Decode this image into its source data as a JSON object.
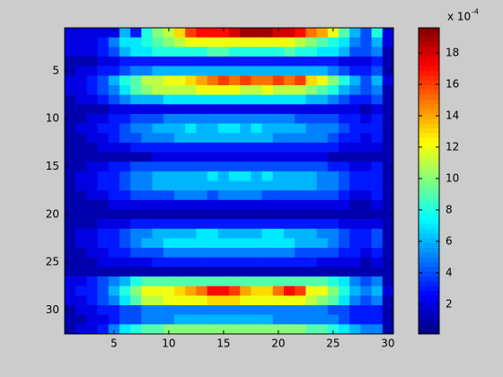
{
  "chart_data": {
    "type": "heatmap",
    "xlim": [
      0.5,
      30.5
    ],
    "ylim": [
      0.5,
      32.5
    ],
    "xticks": [
      5,
      10,
      15,
      20,
      25,
      30
    ],
    "yticks": [
      5,
      10,
      15,
      20,
      25,
      30
    ],
    "clim": [
      0.1,
      19.6
    ],
    "cticks": [
      2,
      4,
      6,
      8,
      10,
      12,
      14,
      16,
      18
    ],
    "colormap": "jet",
    "colorbar_label": "x 10",
    "colorbar_exponent": "-4",
    "values": [
      [
        2,
        2,
        2,
        2,
        2,
        6,
        3,
        8,
        10,
        11,
        13,
        16,
        17,
        17,
        17,
        18,
        19,
        19,
        19,
        18,
        18,
        17,
        15,
        14,
        12,
        9,
        6,
        4,
        8,
        2
      ],
      [
        2,
        2,
        2,
        3,
        5,
        7,
        7,
        8,
        9,
        10,
        11,
        12,
        12,
        12,
        12,
        12,
        12,
        12,
        12,
        12,
        12,
        11,
        10,
        9,
        8,
        7,
        5,
        4,
        6,
        2
      ],
      [
        2,
        2,
        2,
        3,
        4,
        6,
        7,
        7,
        8,
        8,
        8,
        8,
        8,
        9,
        9,
        8,
        8,
        8,
        8,
        8,
        9,
        8,
        8,
        7,
        7,
        6,
        4,
        4,
        5,
        1
      ],
      [
        1,
        1,
        1,
        2,
        2,
        3,
        3,
        3,
        3,
        3,
        3,
        3,
        3,
        3,
        3,
        3,
        3,
        3,
        3,
        3,
        3,
        3,
        3,
        3,
        3,
        2,
        2,
        2,
        3,
        1
      ],
      [
        1,
        2,
        2,
        3,
        3,
        4,
        5,
        5,
        6,
        6,
        6,
        6,
        6,
        6,
        6,
        6,
        6,
        6,
        6,
        6,
        6,
        6,
        6,
        6,
        5,
        4,
        3,
        3,
        4,
        1
      ],
      [
        2,
        2,
        3,
        4,
        6,
        8,
        9,
        11,
        11,
        12,
        12,
        13,
        14,
        15,
        16,
        15,
        16,
        15,
        15,
        16,
        15,
        16,
        13,
        12,
        10,
        8,
        6,
        4,
        6,
        2
      ],
      [
        2,
        2,
        3,
        4,
        5,
        7,
        9,
        10,
        11,
        11,
        11,
        11,
        12,
        12,
        12,
        12,
        11,
        11,
        12,
        11,
        11,
        11,
        10,
        9,
        8,
        6,
        5,
        4,
        5,
        1
      ],
      [
        1,
        2,
        2,
        3,
        4,
        5,
        6,
        6,
        6,
        7,
        7,
        7,
        7,
        7,
        7,
        7,
        7,
        7,
        7,
        7,
        7,
        7,
        6,
        6,
        5,
        4,
        3,
        3,
        4,
        1
      ],
      [
        1,
        1,
        1,
        1,
        2,
        2,
        2,
        2,
        2,
        2,
        2,
        2,
        2,
        2,
        2,
        2,
        2,
        2,
        2,
        2,
        2,
        2,
        2,
        2,
        2,
        2,
        2,
        1,
        2,
        1
      ],
      [
        1,
        1,
        2,
        2,
        3,
        3,
        4,
        4,
        4,
        5,
        5,
        5,
        5,
        5,
        5,
        5,
        5,
        5,
        5,
        5,
        5,
        4,
        4,
        4,
        4,
        3,
        3,
        2,
        3,
        1
      ],
      [
        1,
        2,
        2,
        3,
        3,
        4,
        5,
        5,
        6,
        6,
        6,
        7,
        6,
        6,
        7,
        7,
        6,
        7,
        6,
        6,
        6,
        6,
        5,
        5,
        5,
        4,
        3,
        3,
        3,
        1
      ],
      [
        1,
        1,
        2,
        2,
        3,
        4,
        4,
        5,
        5,
        5,
        6,
        6,
        6,
        6,
        6,
        6,
        6,
        6,
        6,
        5,
        5,
        5,
        5,
        5,
        4,
        3,
        3,
        2,
        3,
        1
      ],
      [
        1,
        1,
        1,
        2,
        2,
        2,
        3,
        3,
        3,
        3,
        3,
        3,
        3,
        3,
        3,
        3,
        3,
        3,
        3,
        3,
        3,
        3,
        3,
        3,
        3,
        2,
        2,
        2,
        2,
        1
      ],
      [
        1,
        1,
        1,
        1,
        1,
        1,
        1,
        1,
        2,
        2,
        2,
        2,
        2,
        2,
        2,
        2,
        2,
        2,
        2,
        2,
        2,
        2,
        2,
        2,
        1,
        1,
        1,
        1,
        1,
        1
      ],
      [
        1,
        1,
        2,
        2,
        3,
        3,
        4,
        4,
        4,
        4,
        4,
        4,
        4,
        4,
        4,
        4,
        4,
        4,
        4,
        4,
        4,
        4,
        4,
        4,
        3,
        3,
        2,
        2,
        3,
        1
      ],
      [
        1,
        2,
        2,
        3,
        3,
        4,
        5,
        5,
        6,
        6,
        6,
        6,
        6,
        7,
        6,
        7,
        7,
        6,
        7,
        6,
        6,
        6,
        6,
        5,
        5,
        4,
        3,
        3,
        3,
        1
      ],
      [
        1,
        2,
        2,
        3,
        3,
        4,
        5,
        5,
        6,
        6,
        6,
        6,
        6,
        6,
        6,
        6,
        6,
        6,
        6,
        6,
        6,
        6,
        6,
        5,
        5,
        4,
        3,
        3,
        3,
        1
      ],
      [
        1,
        1,
        2,
        2,
        3,
        3,
        4,
        4,
        4,
        4,
        5,
        5,
        5,
        4,
        5,
        5,
        5,
        5,
        4,
        4,
        4,
        4,
        4,
        4,
        4,
        3,
        2,
        2,
        3,
        1
      ],
      [
        1,
        1,
        1,
        1,
        2,
        2,
        2,
        2,
        2,
        2,
        2,
        2,
        2,
        2,
        2,
        2,
        2,
        2,
        2,
        2,
        2,
        2,
        2,
        2,
        2,
        2,
        1,
        1,
        2,
        1
      ],
      [
        1,
        1,
        1,
        1,
        1,
        1,
        1,
        1,
        1,
        1,
        1,
        1,
        1,
        1,
        1,
        1,
        1,
        1,
        1,
        1,
        1,
        1,
        1,
        1,
        1,
        1,
        1,
        1,
        1,
        1
      ],
      [
        1,
        1,
        1,
        2,
        2,
        2,
        3,
        3,
        3,
        3,
        3,
        3,
        3,
        3,
        3,
        3,
        3,
        3,
        3,
        3,
        3,
        3,
        3,
        3,
        3,
        2,
        2,
        2,
        2,
        1
      ],
      [
        1,
        2,
        2,
        3,
        3,
        4,
        5,
        5,
        6,
        6,
        6,
        6,
        7,
        7,
        6,
        6,
        6,
        6,
        7,
        7,
        6,
        6,
        6,
        5,
        5,
        4,
        3,
        3,
        4,
        1
      ],
      [
        1,
        2,
        2,
        3,
        3,
        4,
        5,
        6,
        6,
        7,
        7,
        7,
        7,
        7,
        7,
        7,
        7,
        7,
        7,
        7,
        7,
        6,
        6,
        6,
        5,
        4,
        3,
        3,
        4,
        1
      ],
      [
        1,
        1,
        2,
        2,
        3,
        3,
        4,
        4,
        4,
        5,
        5,
        5,
        5,
        5,
        5,
        5,
        5,
        5,
        5,
        5,
        5,
        4,
        4,
        4,
        4,
        3,
        3,
        2,
        3,
        1
      ],
      [
        1,
        1,
        1,
        2,
        2,
        2,
        2,
        2,
        3,
        3,
        3,
        3,
        3,
        3,
        3,
        3,
        3,
        3,
        3,
        3,
        3,
        3,
        3,
        2,
        2,
        2,
        2,
        1,
        2,
        1
      ],
      [
        1,
        1,
        1,
        1,
        1,
        1,
        1,
        1,
        1,
        1,
        1,
        1,
        1,
        1,
        1,
        1,
        1,
        1,
        1,
        1,
        1,
        1,
        1,
        1,
        1,
        1,
        1,
        1,
        1,
        1
      ],
      [
        2,
        2,
        3,
        4,
        5,
        6,
        8,
        9,
        9,
        9,
        9,
        9,
        9,
        9,
        9,
        9,
        9,
        9,
        9,
        9,
        9,
        9,
        9,
        9,
        8,
        7,
        5,
        4,
        5,
        1
      ],
      [
        2,
        3,
        3,
        4,
        6,
        8,
        10,
        12,
        12,
        12,
        13,
        14,
        15,
        17,
        17,
        16,
        14,
        13,
        13,
        15,
        17,
        16,
        12,
        12,
        10,
        8,
        6,
        5,
        6,
        2
      ],
      [
        2,
        2,
        3,
        4,
        5,
        7,
        9,
        11,
        11,
        12,
        12,
        12,
        12,
        13,
        13,
        13,
        12,
        12,
        12,
        12,
        12,
        12,
        11,
        10,
        9,
        7,
        5,
        4,
        5,
        1
      ],
      [
        1,
        2,
        2,
        3,
        3,
        4,
        4,
        5,
        5,
        5,
        5,
        5,
        5,
        5,
        5,
        5,
        5,
        5,
        5,
        5,
        5,
        5,
        5,
        5,
        4,
        4,
        3,
        3,
        3,
        1
      ],
      [
        1,
        1,
        2,
        2,
        3,
        4,
        4,
        5,
        5,
        5,
        6,
        6,
        6,
        6,
        6,
        6,
        6,
        6,
        6,
        5,
        5,
        5,
        5,
        5,
        5,
        4,
        3,
        3,
        3,
        1
      ],
      [
        1,
        2,
        2,
        3,
        5,
        7,
        8,
        9,
        9,
        10,
        10,
        10,
        10,
        10,
        10,
        10,
        10,
        10,
        10,
        10,
        10,
        10,
        9,
        9,
        8,
        7,
        6,
        5,
        5,
        1
      ]
    ]
  }
}
